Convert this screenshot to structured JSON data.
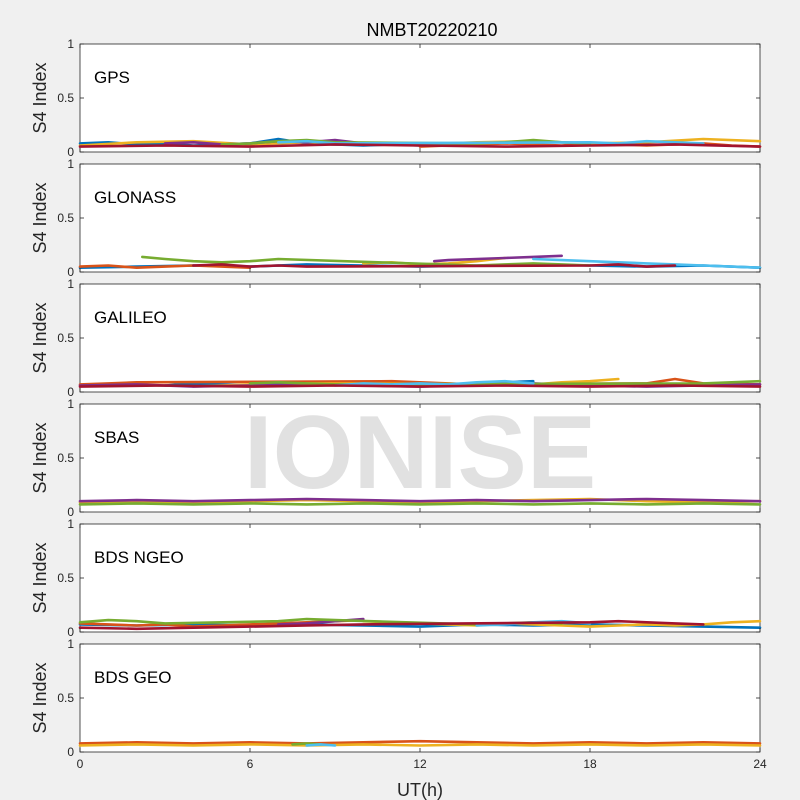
{
  "figure": {
    "title": "NMBT20220210",
    "watermark": "IONISE",
    "ylabel": "S4 Index",
    "xlabel": "UT(h)",
    "background": "#f0f0f0"
  },
  "chart_data": [
    {
      "type": "line",
      "label": "GPS",
      "ylabel": "S4 Index",
      "xlim": [
        0,
        24
      ],
      "ylim": [
        0,
        1
      ],
      "xticks": [
        0,
        6,
        12,
        18,
        24
      ],
      "yticks": [
        0,
        0.5,
        1
      ],
      "ytick_labels": [
        "0",
        "0.5",
        "1"
      ],
      "grid": false,
      "series": [
        {
          "color": "#0072bd",
          "x": [
            0,
            1,
            2,
            3,
            4,
            5,
            6,
            7,
            8,
            9,
            10,
            11,
            12
          ],
          "y": [
            0.08,
            0.09,
            0.07,
            0.08,
            0.06,
            0.07,
            0.08,
            0.12,
            0.08,
            0.07,
            0.06,
            0.07,
            0.06
          ]
        },
        {
          "color": "#d95319",
          "x": [
            12,
            13,
            14,
            15,
            16,
            17,
            18,
            19,
            20,
            21,
            22,
            23,
            24
          ],
          "y": [
            0.05,
            0.06,
            0.07,
            0.08,
            0.07,
            0.06,
            0.08,
            0.07,
            0.06,
            0.07,
            0.08,
            0.06,
            0.05
          ]
        },
        {
          "color": "#edb120",
          "x": [
            0,
            2,
            4,
            6,
            8,
            10,
            12,
            14,
            16,
            18,
            20,
            22,
            24
          ],
          "y": [
            0.06,
            0.09,
            0.1,
            0.07,
            0.09,
            0.08,
            0.07,
            0.09,
            0.1,
            0.08,
            0.09,
            0.12,
            0.1
          ]
        },
        {
          "color": "#7e2f8e",
          "x": [
            3,
            4,
            5,
            6,
            7,
            8,
            9,
            10,
            11
          ],
          "y": [
            0.08,
            0.09,
            0.07,
            0.08,
            0.1,
            0.09,
            0.11,
            0.08,
            0.07
          ]
        },
        {
          "color": "#77ac30",
          "x": [
            5,
            6,
            7,
            8,
            9,
            14,
            15,
            16,
            17,
            18
          ],
          "y": [
            0.07,
            0.08,
            0.1,
            0.11,
            0.09,
            0.08,
            0.09,
            0.11,
            0.09,
            0.08
          ]
        },
        {
          "color": "#4dbeee",
          "x": [
            7,
            8,
            9,
            18,
            19,
            20,
            21,
            22
          ],
          "y": [
            0.09,
            0.1,
            0.08,
            0.09,
            0.08,
            0.1,
            0.09,
            0.08
          ]
        },
        {
          "color": "#a2142f",
          "x": [
            0,
            3,
            6,
            9,
            12,
            15,
            18,
            21,
            24
          ],
          "y": [
            0.05,
            0.06,
            0.05,
            0.07,
            0.06,
            0.05,
            0.06,
            0.07,
            0.05
          ]
        }
      ]
    },
    {
      "type": "line",
      "label": "GLONASS",
      "ylabel": "S4 Index",
      "xlim": [
        0,
        24
      ],
      "ylim": [
        0,
        1
      ],
      "xticks": [
        0,
        6,
        12,
        18,
        24
      ],
      "yticks": [
        0,
        0.5,
        1
      ],
      "ytick_labels": [
        "0",
        "0.5",
        "1"
      ],
      "grid": false,
      "series": [
        {
          "color": "#0072bd",
          "x": [
            0,
            2,
            4,
            6,
            8,
            10,
            12,
            14,
            16,
            18,
            20,
            22,
            24
          ],
          "y": [
            0.04,
            0.05,
            0.06,
            0.05,
            0.07,
            0.06,
            0.05,
            0.06,
            0.07,
            0.06,
            0.05,
            0.06,
            0.04
          ]
        },
        {
          "color": "#d95319",
          "x": [
            0,
            1,
            2,
            3,
            4,
            5,
            6
          ],
          "y": [
            0.05,
            0.06,
            0.04,
            0.05,
            0.06,
            0.05,
            0.04
          ]
        },
        {
          "color": "#edb120",
          "x": [
            10,
            11,
            12,
            13,
            14,
            15
          ],
          "y": [
            0.08,
            0.09,
            0.07,
            0.08,
            0.1,
            0.13
          ]
        },
        {
          "color": "#7e2f8e",
          "x": [
            12.5,
            13,
            14,
            15,
            16,
            17
          ],
          "y": [
            0.1,
            0.11,
            0.12,
            0.13,
            0.14,
            0.15
          ]
        },
        {
          "color": "#77ac30",
          "x": [
            2.2,
            3,
            4,
            5,
            6,
            7,
            14,
            15,
            16,
            17,
            18
          ],
          "y": [
            0.14,
            0.12,
            0.1,
            0.09,
            0.1,
            0.12,
            0.06,
            0.07,
            0.08,
            0.07,
            0.06
          ]
        },
        {
          "color": "#4dbeee",
          "x": [
            16,
            17,
            18,
            19,
            20,
            21,
            22,
            23,
            24
          ],
          "y": [
            0.12,
            0.11,
            0.1,
            0.09,
            0.08,
            0.07,
            0.06,
            0.05,
            0.04
          ]
        },
        {
          "color": "#a2142f",
          "x": [
            4,
            5,
            6,
            7,
            8,
            18,
            19,
            20,
            21
          ],
          "y": [
            0.06,
            0.07,
            0.05,
            0.06,
            0.05,
            0.06,
            0.07,
            0.05,
            0.06
          ]
        }
      ]
    },
    {
      "type": "line",
      "label": "GALILEO",
      "ylabel": "S4 Index",
      "xlim": [
        0,
        24
      ],
      "ylim": [
        0,
        1
      ],
      "xticks": [
        0,
        6,
        12,
        18,
        24
      ],
      "yticks": [
        0,
        0.5,
        1
      ],
      "ytick_labels": [
        "0",
        "0.5",
        "1"
      ],
      "grid": false,
      "series": [
        {
          "color": "#0072bd",
          "x": [
            3,
            4,
            5,
            6,
            7,
            8,
            9,
            10,
            14,
            15,
            16
          ],
          "y": [
            0.06,
            0.08,
            0.07,
            0.06,
            0.08,
            0.09,
            0.08,
            0.07,
            0.07,
            0.09,
            0.1
          ]
        },
        {
          "color": "#d95319",
          "x": [
            0,
            1,
            2,
            11,
            12,
            13,
            14,
            20,
            21,
            22,
            24
          ],
          "y": [
            0.07,
            0.08,
            0.09,
            0.1,
            0.09,
            0.08,
            0.07,
            0.08,
            0.12,
            0.08,
            0.07
          ]
        },
        {
          "color": "#edb120",
          "x": [
            4,
            5,
            6,
            7,
            8,
            16,
            17,
            18,
            19
          ],
          "y": [
            0.05,
            0.06,
            0.07,
            0.06,
            0.08,
            0.07,
            0.09,
            0.1,
            0.12
          ]
        },
        {
          "color": "#7e2f8e",
          "x": [
            0,
            2,
            4,
            6,
            8,
            10,
            12,
            14,
            16,
            18,
            20,
            22,
            24
          ],
          "y": [
            0.06,
            0.07,
            0.05,
            0.06,
            0.07,
            0.06,
            0.05,
            0.07,
            0.08,
            0.06,
            0.05,
            0.06,
            0.07
          ]
        },
        {
          "color": "#77ac30",
          "x": [
            6,
            7,
            8,
            9,
            22,
            23,
            24
          ],
          "y": [
            0.08,
            0.09,
            0.08,
            0.07,
            0.08,
            0.09,
            0.1
          ]
        },
        {
          "color": "#4dbeee",
          "x": [
            9,
            10,
            11,
            12,
            13,
            14,
            15,
            16
          ],
          "y": [
            0.06,
            0.08,
            0.07,
            0.08,
            0.07,
            0.09,
            0.1,
            0.08
          ]
        },
        {
          "color": "#a2142f",
          "x": [
            0,
            3,
            6,
            9,
            12,
            15,
            18,
            21,
            24
          ],
          "y": [
            0.05,
            0.06,
            0.05,
            0.06,
            0.05,
            0.06,
            0.05,
            0.06,
            0.05
          ]
        }
      ]
    },
    {
      "type": "line",
      "label": "SBAS",
      "ylabel": "S4 Index",
      "xlim": [
        0,
        24
      ],
      "ylim": [
        0,
        1
      ],
      "xticks": [
        0,
        6,
        12,
        18,
        24
      ],
      "yticks": [
        0,
        0.5,
        1
      ],
      "ytick_labels": [
        "0",
        "0.5",
        "1"
      ],
      "grid": false,
      "series": [
        {
          "color": "#edb120",
          "x": [
            0,
            2,
            4,
            6,
            8,
            10,
            12,
            14,
            16,
            18,
            20,
            22,
            24
          ],
          "y": [
            0.09,
            0.1,
            0.09,
            0.1,
            0.11,
            0.1,
            0.09,
            0.1,
            0.11,
            0.12,
            0.1,
            0.09,
            0.1
          ]
        },
        {
          "color": "#7e2f8e",
          "x": [
            0,
            2,
            4,
            6,
            8,
            10,
            12,
            14,
            16,
            18,
            20,
            22,
            24
          ],
          "y": [
            0.1,
            0.11,
            0.1,
            0.11,
            0.12,
            0.11,
            0.1,
            0.11,
            0.1,
            0.11,
            0.12,
            0.11,
            0.1
          ]
        },
        {
          "color": "#77ac30",
          "x": [
            0,
            2,
            4,
            6,
            8,
            10,
            12,
            14,
            16,
            18,
            20,
            22,
            24
          ],
          "y": [
            0.07,
            0.08,
            0.07,
            0.08,
            0.07,
            0.08,
            0.07,
            0.08,
            0.07,
            0.08,
            0.07,
            0.08,
            0.07
          ]
        }
      ]
    },
    {
      "type": "line",
      "label": "BDS NGEO",
      "ylabel": "S4 Index",
      "xlim": [
        0,
        24
      ],
      "ylim": [
        0,
        1
      ],
      "xticks": [
        0,
        6,
        12,
        18,
        24
      ],
      "yticks": [
        0,
        0.5,
        1
      ],
      "ytick_labels": [
        "0",
        "0.5",
        "1"
      ],
      "grid": false,
      "series": [
        {
          "color": "#0072bd",
          "x": [
            0,
            2,
            4,
            6,
            8,
            10,
            12,
            14,
            16,
            18,
            20,
            22,
            24
          ],
          "y": [
            0.07,
            0.06,
            0.07,
            0.06,
            0.07,
            0.06,
            0.05,
            0.07,
            0.06,
            0.07,
            0.06,
            0.05,
            0.04
          ]
        },
        {
          "color": "#d95319",
          "x": [
            0,
            1,
            2,
            3,
            4,
            5,
            6,
            7,
            8,
            9,
            10
          ],
          "y": [
            0.08,
            0.07,
            0.06,
            0.07,
            0.05,
            0.06,
            0.07,
            0.08,
            0.09,
            0.1,
            0.11
          ]
        },
        {
          "color": "#edb120",
          "x": [
            10,
            11,
            12,
            13,
            14,
            15,
            16,
            17,
            18,
            19,
            20,
            21,
            22,
            23,
            24
          ],
          "y": [
            0.1,
            0.09,
            0.08,
            0.07,
            0.06,
            0.08,
            0.07,
            0.06,
            0.05,
            0.06,
            0.07,
            0.06,
            0.07,
            0.09,
            0.1
          ]
        },
        {
          "color": "#7e2f8e",
          "x": [
            7,
            8,
            9,
            10
          ],
          "y": [
            0.07,
            0.08,
            0.1,
            0.12
          ]
        },
        {
          "color": "#77ac30",
          "x": [
            0,
            1,
            2,
            3,
            7,
            8,
            9,
            14,
            15,
            16,
            17
          ],
          "y": [
            0.09,
            0.11,
            0.1,
            0.08,
            0.1,
            0.12,
            0.11,
            0.07,
            0.08,
            0.09,
            0.08
          ]
        },
        {
          "color": "#4dbeee",
          "x": [
            14,
            15,
            16,
            17,
            18
          ],
          "y": [
            0.06,
            0.07,
            0.09,
            0.1,
            0.08
          ]
        },
        {
          "color": "#a2142f",
          "x": [
            0,
            2,
            4,
            6,
            8,
            10,
            18,
            19,
            20,
            21,
            22
          ],
          "y": [
            0.04,
            0.03,
            0.04,
            0.05,
            0.06,
            0.07,
            0.09,
            0.1,
            0.09,
            0.08,
            0.07
          ]
        }
      ]
    },
    {
      "type": "line",
      "label": "BDS GEO",
      "ylabel": "S4 Index",
      "xlabel": "UT(h)",
      "xlim": [
        0,
        24
      ],
      "ylim": [
        0,
        1
      ],
      "xticks": [
        0,
        6,
        12,
        18,
        24
      ],
      "xtick_labels": [
        "0",
        "6",
        "12",
        "18",
        "24"
      ],
      "yticks": [
        0,
        0.5,
        1
      ],
      "ytick_labels": [
        "0",
        "0.5",
        "1"
      ],
      "grid": false,
      "series": [
        {
          "color": "#d95319",
          "x": [
            0,
            2,
            4,
            6,
            8,
            10,
            12,
            14,
            16,
            18,
            20,
            22,
            24
          ],
          "y": [
            0.08,
            0.09,
            0.08,
            0.09,
            0.08,
            0.09,
            0.1,
            0.09,
            0.08,
            0.09,
            0.08,
            0.09,
            0.08
          ]
        },
        {
          "color": "#edb120",
          "x": [
            0,
            2,
            4,
            6,
            8,
            10,
            12,
            14,
            16,
            18,
            20,
            22,
            24
          ],
          "y": [
            0.06,
            0.07,
            0.06,
            0.07,
            0.06,
            0.07,
            0.06,
            0.07,
            0.06,
            0.07,
            0.06,
            0.07,
            0.06
          ]
        },
        {
          "color": "#77ac30",
          "x": [
            7.5,
            8,
            8.5
          ],
          "y": [
            0.07,
            0.08,
            0.07
          ]
        },
        {
          "color": "#4dbeee",
          "x": [
            8,
            8.5,
            9
          ],
          "y": [
            0.06,
            0.07,
            0.06
          ]
        }
      ]
    }
  ]
}
